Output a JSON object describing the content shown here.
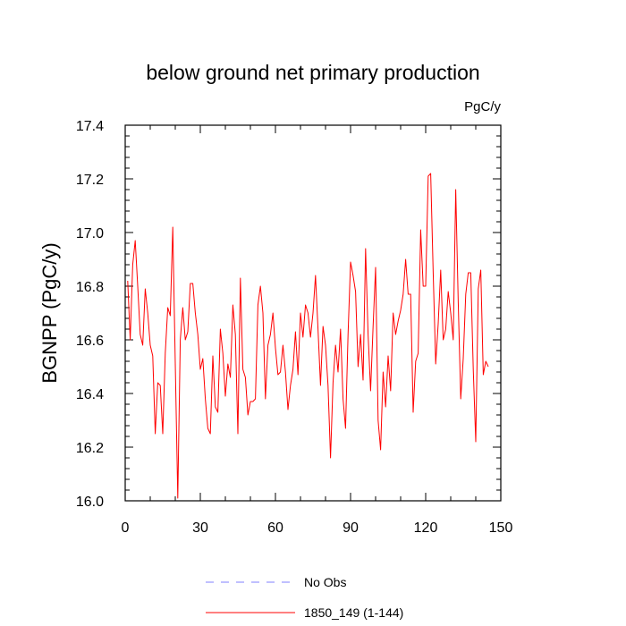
{
  "chart_data": {
    "type": "line",
    "title": "below ground net primary production",
    "units_label": "PgC/y",
    "ylabel": "BGNPP  (PgC/y)",
    "xlabel": "",
    "xlim": [
      0,
      150
    ],
    "ylim": [
      16.0,
      17.4
    ],
    "xticks": [
      0,
      30,
      60,
      90,
      120,
      150
    ],
    "yticks": [
      16.0,
      16.2,
      16.4,
      16.6,
      16.8,
      17.0,
      17.2,
      17.4
    ],
    "xtick_labels": [
      "0",
      "30",
      "60",
      "90",
      "120",
      "150"
    ],
    "ytick_labels": [
      "16.0",
      "16.2",
      "16.4",
      "16.6",
      "16.8",
      "17.0",
      "17.2",
      "17.4"
    ],
    "grid": false,
    "legend_position": "bottom-center",
    "series": [
      {
        "name": "No Obs",
        "color": "#8080ff",
        "style": "dashed",
        "x": [],
        "values": []
      },
      {
        "name": "1850_149 (1-144)",
        "color": "#ff0000",
        "style": "solid",
        "x": [
          1,
          2,
          3,
          4,
          5,
          6,
          7,
          8,
          9,
          10,
          11,
          12,
          13,
          14,
          15,
          16,
          17,
          18,
          19,
          20,
          21,
          22,
          23,
          24,
          25,
          26,
          27,
          28,
          29,
          30,
          31,
          32,
          33,
          34,
          35,
          36,
          37,
          38,
          39,
          40,
          41,
          42,
          43,
          44,
          45,
          46,
          47,
          48,
          49,
          50,
          51,
          52,
          53,
          54,
          55,
          56,
          57,
          58,
          59,
          60,
          61,
          62,
          63,
          64,
          65,
          66,
          67,
          68,
          69,
          70,
          71,
          72,
          73,
          74,
          75,
          76,
          77,
          78,
          79,
          80,
          81,
          82,
          83,
          84,
          85,
          86,
          87,
          88,
          89,
          90,
          91,
          92,
          93,
          94,
          95,
          96,
          97,
          98,
          99,
          100,
          101,
          102,
          103,
          104,
          105,
          106,
          107,
          108,
          109,
          110,
          111,
          112,
          113,
          114,
          115,
          116,
          117,
          118,
          119,
          120,
          121,
          122,
          123,
          124,
          125,
          126,
          127,
          128,
          129,
          130,
          131,
          132,
          133,
          134,
          135,
          136,
          137,
          138,
          139,
          140,
          141,
          142,
          143,
          144,
          145
        ],
        "values": [
          16.82,
          16.6,
          16.88,
          16.97,
          16.8,
          16.62,
          16.58,
          16.79,
          16.7,
          16.58,
          16.54,
          16.25,
          16.44,
          16.43,
          16.25,
          16.55,
          16.72,
          16.69,
          17.02,
          16.51,
          16.01,
          16.6,
          16.72,
          16.6,
          16.63,
          16.81,
          16.81,
          16.7,
          16.62,
          16.49,
          16.53,
          16.38,
          16.27,
          16.25,
          16.54,
          16.35,
          16.33,
          16.64,
          16.55,
          16.39,
          16.51,
          16.46,
          16.73,
          16.62,
          16.25,
          16.83,
          16.49,
          16.46,
          16.32,
          16.37,
          16.37,
          16.38,
          16.73,
          16.8,
          16.7,
          16.38,
          16.58,
          16.62,
          16.7,
          16.57,
          16.47,
          16.48,
          16.58,
          16.48,
          16.34,
          16.43,
          16.49,
          16.63,
          16.47,
          16.7,
          16.61,
          16.73,
          16.7,
          16.61,
          16.7,
          16.84,
          16.64,
          16.43,
          16.65,
          16.58,
          16.43,
          16.16,
          16.44,
          16.58,
          16.48,
          16.64,
          16.38,
          16.27,
          16.62,
          16.89,
          16.84,
          16.78,
          16.5,
          16.62,
          16.45,
          16.94,
          16.62,
          16.41,
          16.65,
          16.87,
          16.3,
          16.19,
          16.48,
          16.35,
          16.54,
          16.41,
          16.7,
          16.62,
          16.67,
          16.71,
          16.77,
          16.9,
          16.77,
          16.77,
          16.33,
          16.52,
          16.55,
          17.01,
          16.8,
          16.8,
          17.21,
          17.22,
          16.85,
          16.51,
          16.66,
          16.86,
          16.6,
          16.64,
          16.78,
          16.7,
          16.6,
          17.16,
          16.74,
          16.38,
          16.53,
          16.77,
          16.85,
          16.85,
          16.49,
          16.22,
          16.79,
          16.86,
          16.47,
          16.52,
          16.5
        ]
      }
    ]
  }
}
